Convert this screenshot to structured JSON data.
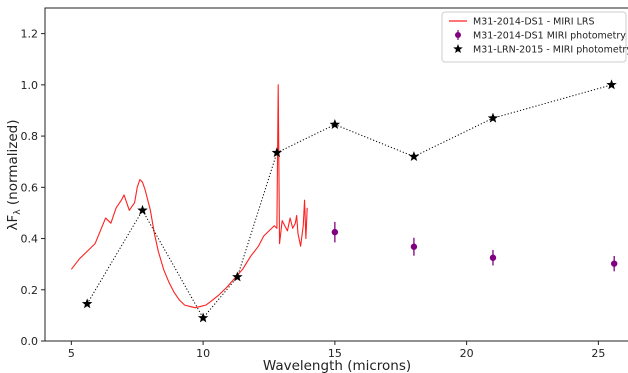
{
  "chart_data": {
    "type": "line",
    "xlabel": "Wavelength (microns)",
    "ylabel_main": "λF",
    "ylabel_sub": "λ",
    "ylabel_rest": " (normalized)",
    "xlim": [
      4.0,
      26.2
    ],
    "ylim": [
      0.0,
      1.3
    ],
    "xticks": [
      5,
      10,
      15,
      20,
      25
    ],
    "yticks": [
      0.0,
      0.2,
      0.4,
      0.6,
      0.8,
      1.0,
      1.2
    ],
    "xtick_labels": [
      "5",
      "10",
      "15",
      "20",
      "25"
    ],
    "ytick_labels": [
      "0.0",
      "0.2",
      "0.4",
      "0.6",
      "0.8",
      "1.0",
      "1.2"
    ],
    "legend_position": "top-right",
    "series": [
      {
        "name": "M31-2014-DS1 - MIRI LRS",
        "kind": "spectrum",
        "color": "#ff2020",
        "x": [
          5.0,
          5.3,
          5.6,
          5.9,
          6.1,
          6.3,
          6.5,
          6.7,
          6.9,
          7.0,
          7.2,
          7.4,
          7.5,
          7.6,
          7.7,
          7.8,
          7.9,
          8.0,
          8.15,
          8.3,
          8.5,
          8.7,
          8.9,
          9.1,
          9.3,
          9.5,
          9.7,
          9.9,
          10.1,
          10.3,
          10.6,
          10.9,
          11.2,
          11.5,
          11.8,
          12.1,
          12.3,
          12.5,
          12.7,
          12.8,
          12.85,
          12.9,
          13.0,
          13.1,
          13.2,
          13.3,
          13.4,
          13.5,
          13.55,
          13.6,
          13.7,
          13.8,
          13.85,
          13.9,
          13.95
        ],
        "y": [
          0.28,
          0.32,
          0.35,
          0.38,
          0.43,
          0.48,
          0.46,
          0.52,
          0.55,
          0.57,
          0.51,
          0.54,
          0.6,
          0.63,
          0.62,
          0.59,
          0.55,
          0.51,
          0.42,
          0.35,
          0.28,
          0.23,
          0.19,
          0.16,
          0.14,
          0.135,
          0.13,
          0.135,
          0.14,
          0.155,
          0.18,
          0.21,
          0.245,
          0.28,
          0.33,
          0.37,
          0.41,
          0.43,
          0.45,
          0.44,
          1.0,
          0.38,
          0.47,
          0.45,
          0.43,
          0.48,
          0.44,
          0.46,
          0.49,
          0.42,
          0.37,
          0.45,
          0.55,
          0.4,
          0.52
        ]
      },
      {
        "name": "M31-2014-DS1 MIRI photometry",
        "kind": "errorbar",
        "color": "#800080",
        "x": [
          15.0,
          18.0,
          21.0,
          25.6
        ],
        "y": [
          0.425,
          0.368,
          0.325,
          0.302
        ],
        "yerr": [
          0.04,
          0.035,
          0.03,
          0.03
        ]
      },
      {
        "name": "M31-LRN-2015 - MIRI photometry",
        "kind": "star-dotted",
        "color": "#000000",
        "x": [
          5.6,
          7.7,
          10.0,
          11.3,
          12.8,
          15.0,
          18.0,
          21.0,
          25.5
        ],
        "y": [
          0.145,
          0.51,
          0.09,
          0.25,
          0.735,
          0.845,
          0.72,
          0.87,
          1.0
        ]
      }
    ]
  }
}
